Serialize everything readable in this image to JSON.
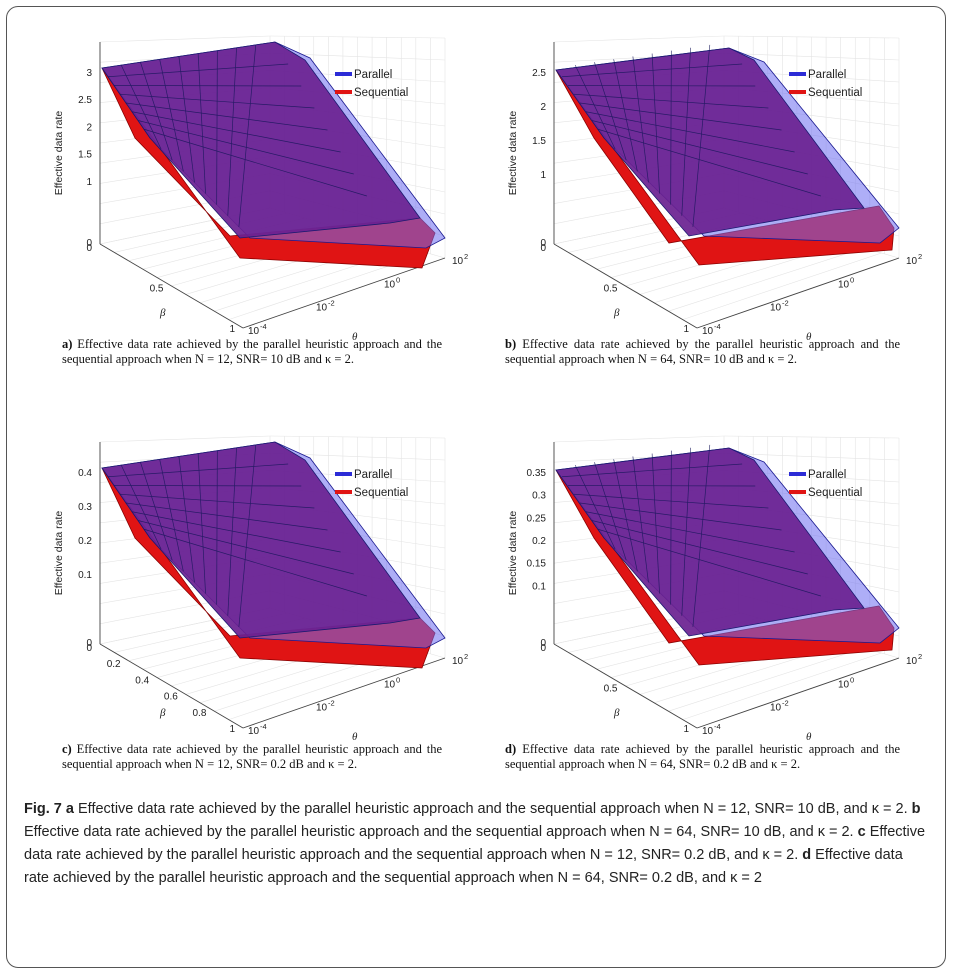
{
  "colors": {
    "parallel": "#2b2bd6",
    "sequential": "#e01414",
    "overlap": "#6a2190",
    "blue_surface": "#6b6bf0"
  },
  "panels": [
    {
      "letter": "a)",
      "caption_text": " Effective data rate achieved by the parallel heuristic approach and the sequential approach when N = 12, SNR= 10 dB and κ = 2.",
      "chart": {
        "type": "surface",
        "zlabel": "Effective data rate",
        "ylabel": "β",
        "xlabel": "θ",
        "zticks": [
          "3",
          "2.5",
          "2",
          "1.5",
          "1",
          "0"
        ],
        "yticks": [
          "0",
          "0.5",
          "1"
        ],
        "xticks": [
          "10-4",
          "10-2",
          "100",
          "102"
        ],
        "legend": [
          "Parallel",
          "Sequential"
        ]
      }
    },
    {
      "letter": "b)",
      "caption_text": " Effective data rate achieved by the parallel heuristic approach and the sequential approach when N = 64, SNR= 10 dB and κ = 2.",
      "chart": {
        "type": "surface",
        "zlabel": "Effective data rate",
        "ylabel": "β",
        "xlabel": "θ",
        "zticks": [
          "2.5",
          "2",
          "1.5",
          "1",
          "0"
        ],
        "yticks": [
          "0",
          "0.5",
          "1"
        ],
        "xticks": [
          "10-4",
          "10-2",
          "100",
          "102"
        ],
        "legend": [
          "Parallel",
          "Sequential"
        ]
      }
    },
    {
      "letter": "c)",
      "caption_text": " Effective data rate achieved by the parallel heuristic approach and the sequential approach when N = 12, SNR= 0.2 dB and κ = 2.",
      "chart": {
        "type": "surface",
        "zlabel": "Effective data rate",
        "ylabel": "β",
        "xlabel": "θ",
        "zticks": [
          "0.4",
          "0.3",
          "0.2",
          "0.1",
          "0"
        ],
        "yticks": [
          "0",
          "0.2",
          "0.4",
          "0.6",
          "0.8",
          "1"
        ],
        "xticks": [
          "10-4",
          "10-2",
          "100",
          "102"
        ],
        "legend": [
          "Parallel",
          "Sequential"
        ]
      }
    },
    {
      "letter": "d)",
      "caption_text": " Effective data rate achieved by the parallel heuristic approach and the sequential approach when N = 64, SNR= 0.2 dB and κ = 2.",
      "chart": {
        "type": "surface",
        "zlabel": "Effective data rate",
        "ylabel": "β",
        "xlabel": "θ",
        "zticks": [
          "0.35",
          "0.3",
          "0.25",
          "0.2",
          "0.15",
          "0.1",
          "0"
        ],
        "yticks": [
          "0",
          "0.5",
          "1"
        ],
        "xticks": [
          "10-4",
          "10-2",
          "100",
          "102"
        ],
        "legend": [
          "Parallel",
          "Sequential"
        ]
      }
    }
  ],
  "chart_data": [
    {
      "type": "surface",
      "panel": "a",
      "zlabel": "Effective data rate",
      "xlabel": "θ",
      "ylabel": "β",
      "xscale": "log",
      "xlim": [
        0.0001,
        100
      ],
      "ylim": [
        0,
        1
      ],
      "zlim": [
        0,
        3.1
      ],
      "legend_position": "top-right",
      "series": [
        {
          "name": "Parallel"
        },
        {
          "name": "Sequential"
        }
      ]
    },
    {
      "type": "surface",
      "panel": "b",
      "zlabel": "Effective data rate",
      "xlabel": "θ",
      "ylabel": "β",
      "xscale": "log",
      "xlim": [
        0.0001,
        100
      ],
      "ylim": [
        0,
        1
      ],
      "zlim": [
        0,
        2.6
      ],
      "legend_position": "top-right",
      "series": [
        {
          "name": "Parallel"
        },
        {
          "name": "Sequential"
        }
      ]
    },
    {
      "type": "surface",
      "panel": "c",
      "zlabel": "Effective data rate",
      "xlabel": "θ",
      "ylabel": "β",
      "xscale": "log",
      "xlim": [
        0.0001,
        100
      ],
      "ylim": [
        0,
        1
      ],
      "zlim": [
        0,
        0.4
      ],
      "legend_position": "top-right",
      "series": [
        {
          "name": "Parallel"
        },
        {
          "name": "Sequential"
        }
      ]
    },
    {
      "type": "surface",
      "panel": "d",
      "zlabel": "Effective data rate",
      "xlabel": "θ",
      "ylabel": "β",
      "xscale": "log",
      "xlim": [
        0.0001,
        100
      ],
      "ylim": [
        0,
        1
      ],
      "zlim": [
        0,
        0.36
      ],
      "legend_position": "top-right",
      "series": [
        {
          "name": "Parallel"
        },
        {
          "name": "Sequential"
        }
      ]
    }
  ],
  "figure_caption": {
    "fig_label": "Fig. 7",
    "parts": [
      {
        "letter": "a",
        "text": " Effective data rate achieved by the parallel heuristic approach and the sequential approach when N = 12, SNR= 10 dB, and κ = 2. "
      },
      {
        "letter": "b",
        "text": " Effective data rate achieved by the parallel heuristic approach and the sequential approach when N = 64, SNR= 10 dB, and κ = 2. "
      },
      {
        "letter": "c",
        "text": " Effective data rate achieved by the parallel heuristic approach and the sequential approach when N = 12, SNR= 0.2 dB, and κ = 2. "
      },
      {
        "letter": "d",
        "text": " Effective data rate achieved by the parallel heuristic approach and the sequential approach when N = 64, SNR= 0.2 dB, and κ = 2"
      }
    ]
  }
}
